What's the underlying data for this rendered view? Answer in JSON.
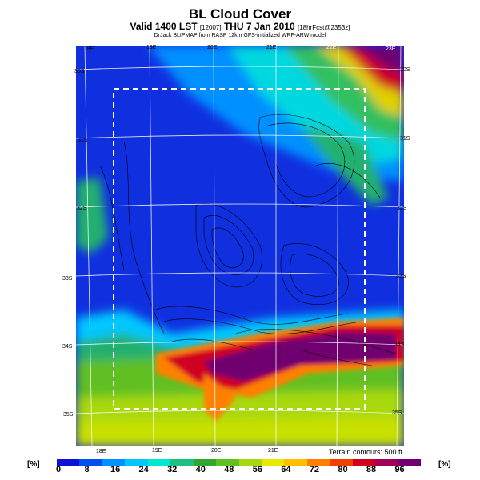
{
  "header": {
    "title": "BL Cloud Cover",
    "subtitle_main": "Valid 1400 LST",
    "subtitle_code": "[12007]",
    "subtitle_date": "THU 7 Jan 2010",
    "subtitle_fcst": "[18hrFcst@2353z]",
    "credit": "DrJack BLIPMAP from RASP 12km GFS-initialized WRF-ARW model"
  },
  "map": {
    "top_lon_labels": [
      "18E",
      "19E",
      "20E",
      "21E",
      "22E",
      "23E"
    ],
    "bottom_lon_labels": [
      "18E",
      "19E",
      "20E",
      "21E"
    ],
    "lat_labels_left": [
      "30S",
      "31S",
      "32S",
      "33S",
      "34S",
      "35S"
    ],
    "lat_labels_right": [
      "30S",
      "31S",
      "32S",
      "33S",
      "34S",
      "35S"
    ],
    "terrain_note": "Terrain contours: 500 ft"
  },
  "colorbar": {
    "unit_left": "[%]",
    "unit_right": "[%]",
    "ticks": [
      "0",
      "8",
      "16",
      "24",
      "32",
      "40",
      "48",
      "56",
      "64",
      "72",
      "80",
      "88",
      "96"
    ],
    "colors": [
      "#1010d8",
      "#0050f0",
      "#0090ff",
      "#00c8ff",
      "#00e8d0",
      "#20c080",
      "#30a830",
      "#60c020",
      "#a8d810",
      "#e8e800",
      "#ffc000",
      "#ff8000",
      "#f04000",
      "#d00020",
      "#a0005a",
      "#700070"
    ]
  }
}
